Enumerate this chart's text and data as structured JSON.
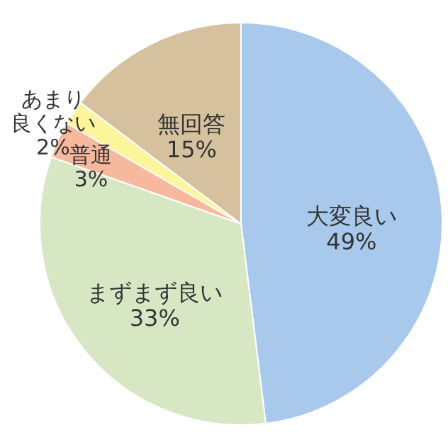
{
  "chart_data": {
    "type": "pie",
    "categories": [
      "大変良い",
      "まずまず良い",
      "普通",
      "あまり良くない",
      "無回答"
    ],
    "values": [
      49,
      33,
      3,
      2,
      15
    ],
    "value_labels": [
      "49%",
      "33%",
      "3%",
      "2%",
      "15%"
    ],
    "colors": [
      "#a9c9ec",
      "#d8e7c3",
      "#f7b99e",
      "#fdf59b",
      "#d6c19f"
    ],
    "legend": false
  }
}
